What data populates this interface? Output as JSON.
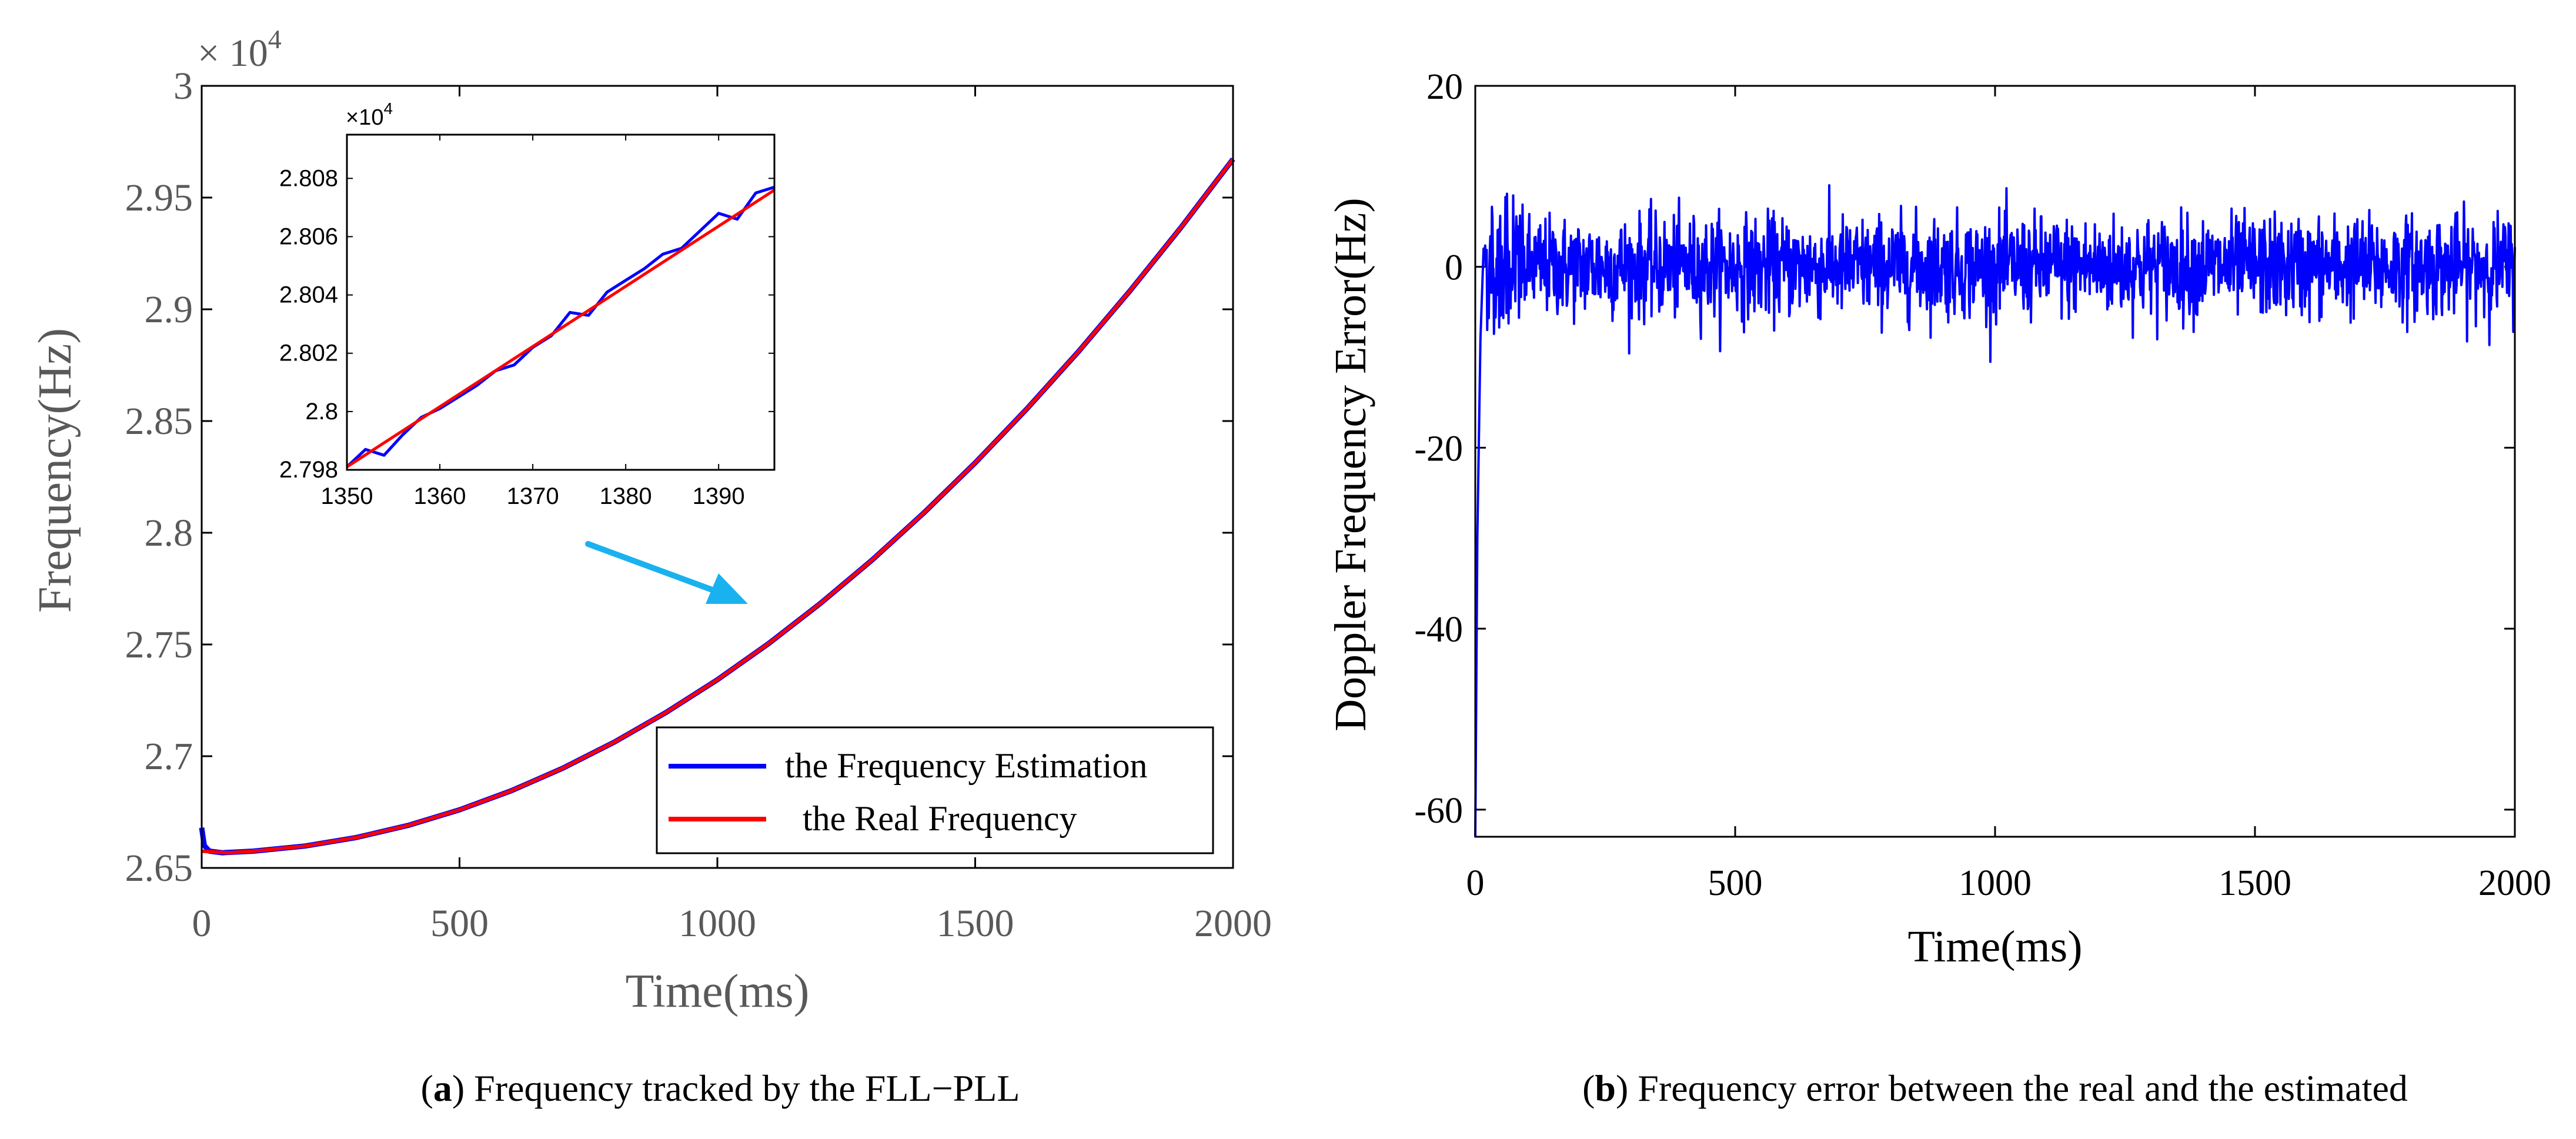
{
  "colors": {
    "estimation": "#0000ff",
    "real": "#ff0000",
    "arrow": "#1ab2ee",
    "axis": "#000000",
    "text": "#595959"
  },
  "chart_data": [
    {
      "id": "a",
      "type": "line",
      "title": "",
      "xlabel": "Time(ms)",
      "ylabel": "Frequency(Hz)",
      "y_multiplier": "× 10",
      "y_multiplier_exp": "4",
      "xlim": [
        0,
        2000
      ],
      "ylim": [
        2.65,
        3.0
      ],
      "xticks": [
        0,
        500,
        1000,
        1500,
        2000
      ],
      "xtick_labels": [
        "0",
        "500",
        "1000",
        "1500",
        "2000"
      ],
      "yticks": [
        2.65,
        2.7,
        2.75,
        2.8,
        2.85,
        2.9,
        2.95,
        3.0
      ],
      "ytick_labels": [
        "2.65",
        "2.7",
        "2.75",
        "2.8",
        "2.85",
        "2.9",
        "2.95",
        "3"
      ],
      "legend": {
        "position": "bottom-right",
        "entries": [
          "the Frequency Estimation",
          "  the Real Frequency"
        ]
      },
      "series": [
        {
          "name": "the Frequency Estimation",
          "x": [
            0,
            5,
            15,
            40,
            100,
            200,
            300,
            400,
            500,
            600,
            700,
            800,
            900,
            1000,
            1100,
            1200,
            1300,
            1400,
            1500,
            1600,
            1700,
            1800,
            1900,
            2000
          ],
          "values": [
            2.668,
            2.66,
            2.6575,
            2.6568,
            2.6575,
            2.6598,
            2.6636,
            2.669,
            2.676,
            2.6845,
            2.6946,
            2.7063,
            2.7195,
            2.7342,
            2.7505,
            2.7684,
            2.7878,
            2.8088,
            2.8313,
            2.8554,
            2.881,
            2.9082,
            2.9369,
            2.9672
          ]
        },
        {
          "name": "the Real Frequency",
          "x": [
            0,
            50,
            100,
            200,
            300,
            400,
            500,
            600,
            700,
            800,
            900,
            1000,
            1100,
            1200,
            1300,
            1400,
            1500,
            1600,
            1700,
            1800,
            1900,
            2000
          ],
          "values": [
            2.6575,
            2.6568,
            2.6575,
            2.6598,
            2.6636,
            2.669,
            2.676,
            2.6845,
            2.6946,
            2.7063,
            2.7195,
            2.7342,
            2.7505,
            2.7684,
            2.7878,
            2.8088,
            2.8313,
            2.8554,
            2.881,
            2.9082,
            2.9369,
            2.9672
          ]
        }
      ],
      "inset": {
        "xlim": [
          1350,
          1396
        ],
        "ylim": [
          2.798,
          2.8095
        ],
        "xticks": [
          1350,
          1360,
          1370,
          1380,
          1390
        ],
        "xtick_labels": [
          "1350",
          "1360",
          "1370",
          "1380",
          "1390"
        ],
        "yticks": [
          2.798,
          2.8,
          2.802,
          2.804,
          2.806,
          2.808
        ],
        "ytick_labels": [
          "2.798",
          "2.8",
          "2.802",
          "2.804",
          "2.806",
          "2.808"
        ],
        "y_multiplier": "×10",
        "y_multiplier_exp": "4",
        "series": [
          {
            "name": "the Frequency Estimation",
            "x": [
              1350,
              1352,
              1354,
              1356,
              1358,
              1360,
              1362,
              1364,
              1366,
              1368,
              1370,
              1372,
              1374,
              1376,
              1378,
              1380,
              1382,
              1384,
              1386,
              1388,
              1390,
              1392,
              1394,
              1396
            ],
            "values": [
              2.7981,
              2.7987,
              2.7985,
              2.7992,
              2.7998,
              2.8001,
              2.8005,
              2.8009,
              2.8014,
              2.8016,
              2.8022,
              2.8026,
              2.8034,
              2.8033,
              2.8041,
              2.8045,
              2.8049,
              2.8054,
              2.8056,
              2.8062,
              2.8068,
              2.8066,
              2.8075,
              2.8077
            ]
          },
          {
            "name": "the Real Frequency",
            "x": [
              1350,
              1396
            ],
            "values": [
              2.7981,
              2.8076
            ]
          }
        ]
      },
      "annotation": "arrow from inset to curve near t≈1050 ms",
      "caption_letter": "a",
      "caption_text": ") Frequency tracked by the FLL−PLL"
    },
    {
      "id": "b",
      "type": "line",
      "title": "",
      "xlabel": "Time(ms)",
      "ylabel": "Doppler Frequency Error(Hz)",
      "xlim": [
        0,
        2000
      ],
      "ylim": [
        -63,
        20
      ],
      "xticks": [
        0,
        500,
        1000,
        1500,
        2000
      ],
      "xtick_labels": [
        "0",
        "500",
        "1000",
        "1500",
        "2000"
      ],
      "yticks": [
        -60,
        -40,
        -20,
        0,
        20
      ],
      "ytick_labels": [
        "-60",
        "-40",
        "-20",
        "0",
        "20"
      ],
      "series": [
        {
          "name": "Doppler Frequency Error",
          "description": "starts near -63 Hz at t=0, converges within ~20 ms, then noise around 0 Hz roughly between -10 and +11 Hz",
          "x_start": 0,
          "x_end": 2000,
          "initial_value": -63,
          "steady_mean": 0,
          "noise_amplitude": 5
        }
      ],
      "caption_letter": "b",
      "caption_text": ") Frequency error between the real and the estimated"
    }
  ]
}
